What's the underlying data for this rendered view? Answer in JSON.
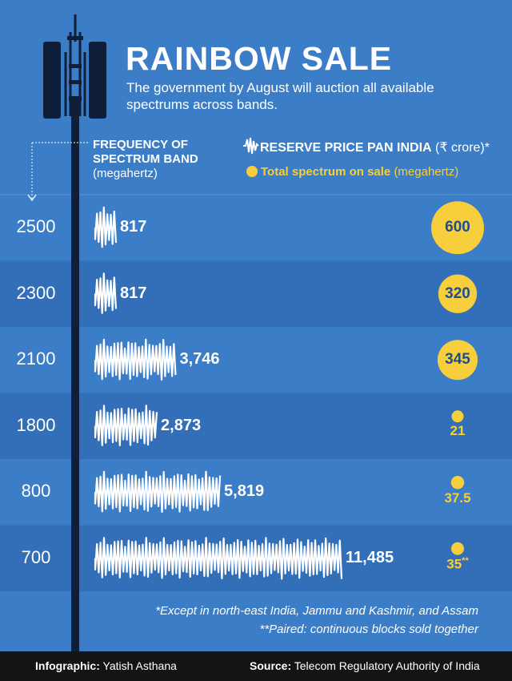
{
  "header": {
    "title": "RAINBOW SALE",
    "subtitle": "The government by August will auction all available spectrums across bands."
  },
  "columns": {
    "frequency_l1": "FREQUENCY OF",
    "frequency_l2": "SPECTRUM BAND",
    "frequency_unit": "(megahertz)",
    "reserve_label": "RESERVE PRICE PAN INDIA",
    "reserve_unit": "(₹ crore)*",
    "spectrum_label": "Total spectrum on sale",
    "spectrum_unit": "(megahertz)"
  },
  "colors": {
    "background": "#3b7dc7",
    "band_dark": "#336fb8",
    "tower": "#0f1f3a",
    "accent_yellow": "#f7cf3d",
    "footer": "#141414"
  },
  "chart_data": {
    "type": "bar",
    "categories": [
      "2500",
      "2300",
      "2100",
      "1800",
      "800",
      "700"
    ],
    "series": [
      {
        "name": "RESERVE PRICE PAN INDIA (₹ crore)*",
        "values": [
          817,
          817,
          3746,
          2873,
          5819,
          11485
        ],
        "labels": [
          "817",
          "817",
          "3,746",
          "2,873",
          "5,819",
          "11,485"
        ]
      },
      {
        "name": "Total spectrum on sale (megahertz)",
        "values": [
          600,
          320,
          345,
          21,
          37.5,
          35
        ],
        "labels": [
          "600",
          "320",
          "345",
          "21",
          "37.5",
          "35"
        ]
      }
    ],
    "annotations": [
      "**"
    ]
  },
  "notes": [
    "*Except in north-east India, Jammu and Kashmir, and Assam",
    "**Paired: continuous blocks sold together"
  ],
  "footer": {
    "credit_label": "Infographic:",
    "credit_value": "Yatish Asthana",
    "source_label": "Source:",
    "source_value": "Telecom Regulatory Authority of India"
  }
}
